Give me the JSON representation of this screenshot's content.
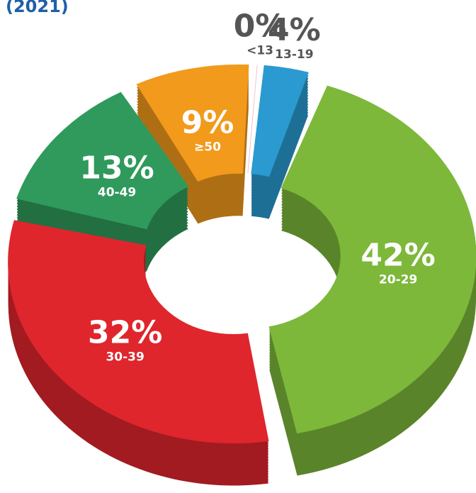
{
  "chart_data": {
    "type": "donut",
    "title": "(2021)",
    "categories": [
      "<13",
      "13-19",
      "20-29",
      "30-39",
      "40-49",
      "≥50"
    ],
    "values": [
      0,
      4,
      42,
      32,
      13,
      9
    ],
    "value_labels": [
      "0%",
      "4%",
      "42%",
      "32%",
      "13%",
      "9%"
    ],
    "colors": [
      "#f2c4d2",
      "#2a9ad0",
      "#7db83a",
      "#df262d",
      "#2f9a5b",
      "#f29a1c"
    ]
  }
}
